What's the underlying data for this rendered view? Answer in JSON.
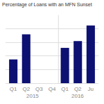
{
  "chart_data": {
    "type": "bar",
    "title": "Percentage of Loans with an MFN Sunset",
    "categories": [
      "Q1",
      "Q2",
      "Q3",
      "Q4",
      "Q1",
      "Q2",
      "Ju"
    ],
    "values": [
      35,
      72,
      0,
      0,
      52,
      62,
      85
    ],
    "color": "#0d1172",
    "ylim": [
      0,
      100
    ],
    "yticks": [
      20,
      40,
      60,
      80,
      100
    ],
    "grid": true,
    "tick_labels": "x",
    "annotations": [
      {
        "text": "2015",
        "x": 1.5
      },
      {
        "text": "2016",
        "x": 5.0
      }
    ]
  }
}
